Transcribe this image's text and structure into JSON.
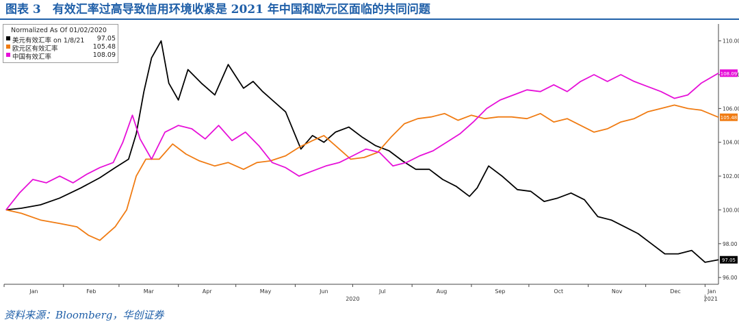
{
  "figure": {
    "title": "图表 3　有效汇率过高导致信用环境收紧是 2021 年中国和欧元区面临的共同问题",
    "source": "资料来源：Bloomberg，华创证券"
  },
  "chart_data": {
    "type": "line",
    "legend_title": "Normalized As Of 01/02/2020",
    "legend_placement": "top-left",
    "grid": false,
    "x_range": [
      "2020-01-01",
      "2021-01-08"
    ],
    "x_tick_labels": [
      "Jan",
      "Feb",
      "Mar",
      "Apr",
      "May",
      "Jun",
      "Jul",
      "Aug",
      "Sep",
      "Oct",
      "Nov",
      "Dec",
      "Jan"
    ],
    "x_year_labels": [
      "2020",
      "2021"
    ],
    "y_range": [
      95.6,
      111.0
    ],
    "y_ticks": [
      "96.00",
      "98.00",
      "100.00",
      "102.00",
      "104.00",
      "106.00",
      "108.00",
      "110.00"
    ],
    "series": [
      {
        "name": "美元有效汇率",
        "name_suffix": "on 1/8/21",
        "last_value": "97.05",
        "color": "#000000",
        "points": [
          [
            "2020-01-02",
            100.0
          ],
          [
            "2020-01-10",
            100.1
          ],
          [
            "2020-01-20",
            100.3
          ],
          [
            "2020-01-30",
            100.7
          ],
          [
            "2020-02-10",
            101.3
          ],
          [
            "2020-02-20",
            101.9
          ],
          [
            "2020-02-28",
            102.5
          ],
          [
            "2020-03-06",
            103.0
          ],
          [
            "2020-03-10",
            104.5
          ],
          [
            "2020-03-14",
            107.0
          ],
          [
            "2020-03-18",
            109.0
          ],
          [
            "2020-03-23",
            110.0
          ],
          [
            "2020-03-27",
            107.5
          ],
          [
            "2020-04-01",
            106.5
          ],
          [
            "2020-04-06",
            108.3
          ],
          [
            "2020-04-13",
            107.5
          ],
          [
            "2020-04-20",
            106.8
          ],
          [
            "2020-04-27",
            108.6
          ],
          [
            "2020-05-05",
            107.2
          ],
          [
            "2020-05-10",
            107.6
          ],
          [
            "2020-05-15",
            107.0
          ],
          [
            "2020-05-20",
            106.5
          ],
          [
            "2020-05-27",
            105.8
          ],
          [
            "2020-06-04",
            103.6
          ],
          [
            "2020-06-10",
            104.4
          ],
          [
            "2020-06-16",
            104.0
          ],
          [
            "2020-06-22",
            104.6
          ],
          [
            "2020-06-29",
            104.9
          ],
          [
            "2020-07-06",
            104.3
          ],
          [
            "2020-07-13",
            103.8
          ],
          [
            "2020-07-20",
            103.5
          ],
          [
            "2020-07-27",
            102.9
          ],
          [
            "2020-08-03",
            102.4
          ],
          [
            "2020-08-10",
            102.4
          ],
          [
            "2020-08-17",
            101.8
          ],
          [
            "2020-08-24",
            101.4
          ],
          [
            "2020-08-31",
            100.8
          ],
          [
            "2020-09-04",
            101.3
          ],
          [
            "2020-09-10",
            102.6
          ],
          [
            "2020-09-17",
            102.0
          ],
          [
            "2020-09-25",
            101.2
          ],
          [
            "2020-10-02",
            101.1
          ],
          [
            "2020-10-09",
            100.5
          ],
          [
            "2020-10-16",
            100.7
          ],
          [
            "2020-10-23",
            101.0
          ],
          [
            "2020-10-30",
            100.6
          ],
          [
            "2020-11-06",
            99.6
          ],
          [
            "2020-11-13",
            99.4
          ],
          [
            "2020-11-20",
            99.0
          ],
          [
            "2020-11-27",
            98.6
          ],
          [
            "2020-12-04",
            98.0
          ],
          [
            "2020-12-11",
            97.4
          ],
          [
            "2020-12-18",
            97.4
          ],
          [
            "2020-12-25",
            97.6
          ],
          [
            "2021-01-01",
            96.9
          ],
          [
            "2021-01-08",
            97.05
          ]
        ]
      },
      {
        "name": "欧元区有效汇率",
        "name_suffix": "",
        "last_value": "105.48",
        "color": "#f07b12",
        "points": [
          [
            "2020-01-02",
            100.0
          ],
          [
            "2020-01-10",
            99.8
          ],
          [
            "2020-01-20",
            99.4
          ],
          [
            "2020-01-30",
            99.2
          ],
          [
            "2020-02-08",
            99.0
          ],
          [
            "2020-02-14",
            98.5
          ],
          [
            "2020-02-20",
            98.2
          ],
          [
            "2020-02-28",
            99.0
          ],
          [
            "2020-03-05",
            100.0
          ],
          [
            "2020-03-10",
            102.0
          ],
          [
            "2020-03-15",
            103.0
          ],
          [
            "2020-03-22",
            103.0
          ],
          [
            "2020-03-29",
            103.9
          ],
          [
            "2020-04-05",
            103.3
          ],
          [
            "2020-04-12",
            102.9
          ],
          [
            "2020-04-20",
            102.6
          ],
          [
            "2020-04-27",
            102.8
          ],
          [
            "2020-05-05",
            102.4
          ],
          [
            "2020-05-12",
            102.8
          ],
          [
            "2020-05-19",
            102.9
          ],
          [
            "2020-05-27",
            103.2
          ],
          [
            "2020-06-03",
            103.7
          ],
          [
            "2020-06-10",
            104.1
          ],
          [
            "2020-06-16",
            104.4
          ],
          [
            "2020-06-23",
            103.7
          ],
          [
            "2020-06-30",
            103.0
          ],
          [
            "2020-07-07",
            103.1
          ],
          [
            "2020-07-14",
            103.4
          ],
          [
            "2020-07-21",
            104.3
          ],
          [
            "2020-07-28",
            105.1
          ],
          [
            "2020-08-04",
            105.4
          ],
          [
            "2020-08-11",
            105.5
          ],
          [
            "2020-08-18",
            105.7
          ],
          [
            "2020-08-25",
            105.3
          ],
          [
            "2020-09-01",
            105.6
          ],
          [
            "2020-09-08",
            105.4
          ],
          [
            "2020-09-15",
            105.5
          ],
          [
            "2020-09-22",
            105.5
          ],
          [
            "2020-09-30",
            105.4
          ],
          [
            "2020-10-07",
            105.7
          ],
          [
            "2020-10-14",
            105.2
          ],
          [
            "2020-10-21",
            105.4
          ],
          [
            "2020-10-28",
            105.0
          ],
          [
            "2020-11-04",
            104.6
          ],
          [
            "2020-11-11",
            104.8
          ],
          [
            "2020-11-18",
            105.2
          ],
          [
            "2020-11-25",
            105.4
          ],
          [
            "2020-12-02",
            105.8
          ],
          [
            "2020-12-09",
            106.0
          ],
          [
            "2020-12-16",
            106.2
          ],
          [
            "2020-12-23",
            106.0
          ],
          [
            "2020-12-30",
            105.9
          ],
          [
            "2021-01-08",
            105.48
          ]
        ]
      },
      {
        "name": "中国有效汇率",
        "name_suffix": "",
        "last_value": "108.09",
        "color": "#e60fd8",
        "points": [
          [
            "2020-01-02",
            100.0
          ],
          [
            "2020-01-09",
            101.0
          ],
          [
            "2020-01-16",
            101.8
          ],
          [
            "2020-01-23",
            101.6
          ],
          [
            "2020-01-30",
            102.0
          ],
          [
            "2020-02-06",
            101.6
          ],
          [
            "2020-02-13",
            102.1
          ],
          [
            "2020-02-20",
            102.5
          ],
          [
            "2020-02-27",
            102.8
          ],
          [
            "2020-03-03",
            104.0
          ],
          [
            "2020-03-08",
            105.6
          ],
          [
            "2020-03-12",
            104.2
          ],
          [
            "2020-03-18",
            103.0
          ],
          [
            "2020-03-25",
            104.6
          ],
          [
            "2020-04-01",
            105.0
          ],
          [
            "2020-04-08",
            104.8
          ],
          [
            "2020-04-15",
            104.2
          ],
          [
            "2020-04-22",
            105.0
          ],
          [
            "2020-04-29",
            104.1
          ],
          [
            "2020-05-06",
            104.6
          ],
          [
            "2020-05-13",
            103.8
          ],
          [
            "2020-05-20",
            102.8
          ],
          [
            "2020-05-27",
            102.5
          ],
          [
            "2020-06-03",
            102.0
          ],
          [
            "2020-06-10",
            102.3
          ],
          [
            "2020-06-17",
            102.6
          ],
          [
            "2020-06-24",
            102.8
          ],
          [
            "2020-07-01",
            103.2
          ],
          [
            "2020-07-08",
            103.6
          ],
          [
            "2020-07-15",
            103.4
          ],
          [
            "2020-07-22",
            102.6
          ],
          [
            "2020-07-29",
            102.8
          ],
          [
            "2020-08-05",
            103.2
          ],
          [
            "2020-08-12",
            103.5
          ],
          [
            "2020-08-19",
            104.0
          ],
          [
            "2020-08-26",
            104.5
          ],
          [
            "2020-09-02",
            105.2
          ],
          [
            "2020-09-09",
            106.0
          ],
          [
            "2020-09-16",
            106.5
          ],
          [
            "2020-09-23",
            106.8
          ],
          [
            "2020-09-30",
            107.1
          ],
          [
            "2020-10-07",
            107.0
          ],
          [
            "2020-10-14",
            107.4
          ],
          [
            "2020-10-21",
            107.0
          ],
          [
            "2020-10-28",
            107.6
          ],
          [
            "2020-11-04",
            108.0
          ],
          [
            "2020-11-11",
            107.6
          ],
          [
            "2020-11-18",
            108.0
          ],
          [
            "2020-11-25",
            107.6
          ],
          [
            "2020-12-02",
            107.3
          ],
          [
            "2020-12-09",
            107.0
          ],
          [
            "2020-12-16",
            106.6
          ],
          [
            "2020-12-23",
            106.8
          ],
          [
            "2020-12-30",
            107.5
          ],
          [
            "2021-01-08",
            108.09
          ]
        ]
      }
    ]
  }
}
